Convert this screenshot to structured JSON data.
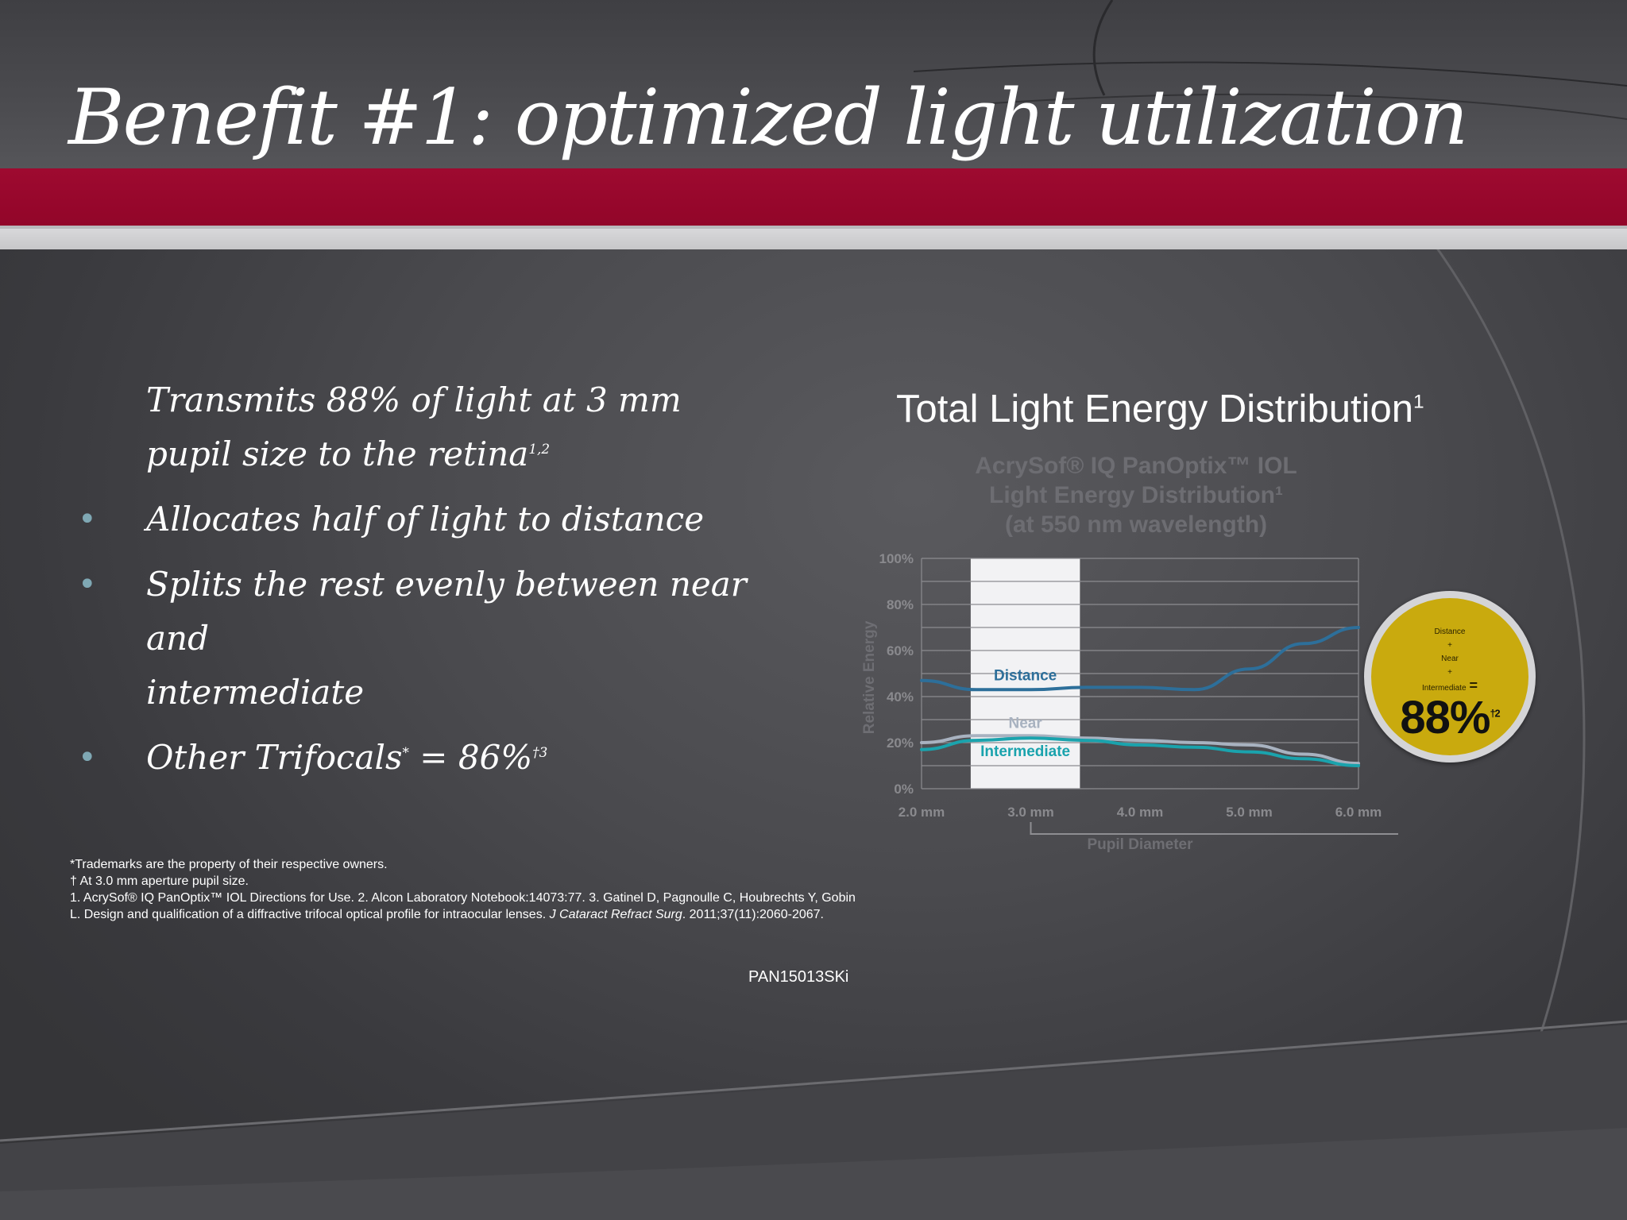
{
  "slide": {
    "title": "Benefit #1: optimized light utilization",
    "bullets": [
      {
        "marker": "",
        "lines": [
          "Transmits 88% of light at 3 mm",
          "pupil size to the retina"
        ],
        "sup": "1,2"
      },
      {
        "marker": "•",
        "lines": [
          "Allocates half of light to distance"
        ],
        "sup": ""
      },
      {
        "marker": "•",
        "lines": [
          "Splits the rest evenly between near and",
          "intermediate"
        ],
        "sup": ""
      },
      {
        "marker": "•",
        "text_before": "Other Trifocals",
        "sup_mid": "*",
        "text_after": " = 86%",
        "sup": "†3"
      }
    ],
    "footnotes": [
      "*Trademarks are the property of their respective owners.",
      "† At  3.0 mm aperture pupil size.",
      "1. AcrySof® IQ PanOptix™ IOL Directions for Use. 2. Alcon Laboratory Notebook:14073:77. 3. Gatinel D, Pagnoulle C, Houbrechts Y, Gobin L. Design and qualification of a diffractive trifocal optical profile for intraocular lenses."
    ],
    "footnote_journal": "J Cataract Refract Surg",
    "footnote_tail": ". 2011;37(11):2060-2067.",
    "code": "PAN15013SKi",
    "chart_heading": "Total Light Energy Distribution",
    "chart_heading_sup": "1"
  },
  "badge": {
    "small_lines": [
      "Distance",
      "+",
      "Near",
      "+",
      "Intermediate"
    ],
    "equals": "=",
    "value": "88%",
    "value_sup": "†2",
    "color": "#c9aa0e"
  },
  "chart_data": {
    "type": "line",
    "title_lines": [
      "AcrySof® IQ PanOptix™ IOL",
      "Light Energy Distribution¹",
      "(at 550 nm wavelength)"
    ],
    "xlabel": "Pupil Diameter",
    "ylabel": "Relative Energy",
    "x_ticks": [
      "2.0 mm",
      "3.0 mm",
      "4.0 mm",
      "5.0 mm",
      "6.0 mm"
    ],
    "x_tick_values": [
      2.0,
      3.0,
      4.0,
      5.0,
      6.0
    ],
    "xlim": [
      2.0,
      6.0
    ],
    "y_ticks": [
      "0%",
      "20%",
      "40%",
      "60%",
      "80%",
      "100%"
    ],
    "ylim": [
      0,
      100
    ],
    "grid": true,
    "highlight_x_range": [
      2.45,
      3.45
    ],
    "series": [
      {
        "name": "Distance",
        "color": "#2d6f9a",
        "x": [
          2.0,
          2.5,
          3.0,
          3.5,
          4.0,
          4.5,
          5.0,
          5.5,
          6.0
        ],
        "y": [
          47,
          43,
          43,
          44,
          44,
          43,
          52,
          63,
          70
        ]
      },
      {
        "name": "Near",
        "color": "#a8b2c0",
        "x": [
          2.0,
          2.5,
          3.0,
          3.5,
          4.0,
          4.5,
          5.0,
          5.5,
          6.0
        ],
        "y": [
          20,
          23,
          23,
          22,
          21,
          20,
          19,
          15,
          11
        ]
      },
      {
        "name": "Intermediate",
        "color": "#1aa3ad",
        "x": [
          2.0,
          2.5,
          3.0,
          3.5,
          4.0,
          4.5,
          5.0,
          5.5,
          6.0
        ],
        "y": [
          17,
          21,
          22,
          21,
          19,
          18,
          16,
          13,
          10
        ]
      }
    ]
  }
}
